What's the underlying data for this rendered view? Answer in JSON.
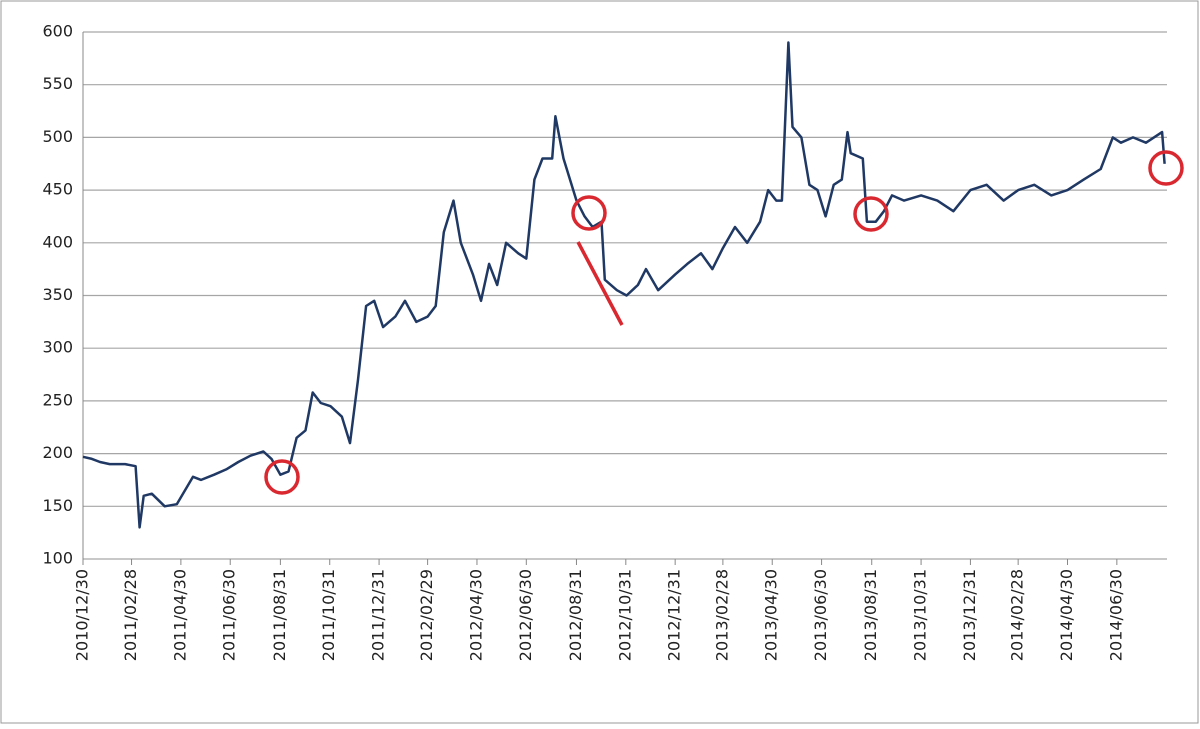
{
  "chart_data": {
    "type": "line",
    "x": [
      "2010/12/30",
      "2011/01/10",
      "2011/01/20",
      "2011/02/01",
      "2011/02/20",
      "2011/03/05",
      "2011/03/10",
      "2011/03/15",
      "2011/03/25",
      "2011/04/10",
      "2011/04/25",
      "2011/05/05",
      "2011/05/15",
      "2011/05/25",
      "2011/06/10",
      "2011/06/25",
      "2011/07/10",
      "2011/07/25",
      "2011/08/10",
      "2011/08/20",
      "2011/08/31",
      "2011/09/10",
      "2011/09/20",
      "2011/10/01",
      "2011/10/10",
      "2011/10/20",
      "2011/11/01",
      "2011/11/15",
      "2011/11/25",
      "2011/12/05",
      "2011/12/15",
      "2011/12/25",
      "2012/01/05",
      "2012/01/20",
      "2012/02/01",
      "2012/02/15",
      "2012/02/29",
      "2012/03/10",
      "2012/03/20",
      "2012/04/01",
      "2012/04/10",
      "2012/04/25",
      "2012/05/05",
      "2012/05/15",
      "2012/05/25",
      "2012/06/05",
      "2012/06/20",
      "2012/06/30",
      "2012/07/10",
      "2012/07/20",
      "2012/08/01",
      "2012/08/05",
      "2012/08/15",
      "2012/08/31",
      "2012/09/10",
      "2012/09/20",
      "2012/10/01",
      "2012/10/05",
      "2012/10/20",
      "2012/11/01",
      "2012/11/15",
      "2012/11/25",
      "2012/12/10",
      "2012/12/31",
      "2013/01/15",
      "2013/02/01",
      "2013/02/15",
      "2013/02/28",
      "2013/03/15",
      "2013/03/30",
      "2013/04/15",
      "2013/04/25",
      "2013/05/05",
      "2013/05/12",
      "2013/05/20",
      "2013/05/25",
      "2013/06/05",
      "2013/06/15",
      "2013/06/25",
      "2013/07/05",
      "2013/07/15",
      "2013/07/25",
      "2013/08/01",
      "2013/08/05",
      "2013/08/20",
      "2013/08/25",
      "2013/09/05",
      "2013/09/15",
      "2013/09/25",
      "2013/10/10",
      "2013/10/31",
      "2013/11/20",
      "2013/12/10",
      "2013/12/31",
      "2014/01/20",
      "2014/02/10",
      "2014/02/28",
      "2014/03/20",
      "2014/04/10",
      "2014/04/30",
      "2014/05/20",
      "2014/06/10",
      "2014/06/25",
      "2014/07/05",
      "2014/07/20",
      "2014/08/05",
      "2014/08/25",
      "2014/08/28"
    ],
    "values": [
      197,
      195,
      192,
      190,
      190,
      188,
      130,
      160,
      162,
      150,
      152,
      165,
      178,
      175,
      180,
      185,
      192,
      198,
      202,
      195,
      180,
      183,
      215,
      222,
      258,
      248,
      245,
      235,
      210,
      270,
      340,
      345,
      320,
      330,
      345,
      325,
      330,
      340,
      410,
      440,
      400,
      370,
      345,
      380,
      360,
      400,
      390,
      385,
      460,
      480,
      480,
      520,
      480,
      440,
      425,
      415,
      420,
      365,
      355,
      350,
      360,
      375,
      355,
      370,
      380,
      390,
      375,
      395,
      415,
      400,
      420,
      450,
      440,
      440,
      590,
      510,
      500,
      455,
      450,
      425,
      455,
      460,
      505,
      485,
      480,
      420,
      420,
      430,
      445,
      440,
      445,
      440,
      430,
      450,
      455,
      440,
      450,
      455,
      445,
      450,
      460,
      470,
      500,
      495,
      500,
      495,
      505,
      475
    ],
    "color": "#1f3864",
    "xlim": [
      "2010/12/30",
      "2014/08/31"
    ],
    "xticks": [
      "2010/12/30",
      "2011/02/28",
      "2011/04/30",
      "2011/06/30",
      "2011/08/31",
      "2011/10/31",
      "2011/12/31",
      "2012/02/29",
      "2012/04/30",
      "2012/06/30",
      "2012/08/31",
      "2012/10/31",
      "2012/12/31",
      "2013/02/28",
      "2013/04/30",
      "2013/06/30",
      "2013/08/31",
      "2013/10/31",
      "2013/12/31",
      "2014/02/28",
      "2014/04/30",
      "2014/06/30"
    ],
    "ylim": [
      100,
      600
    ],
    "yticks": [
      100,
      150,
      200,
      250,
      300,
      350,
      400,
      450,
      500,
      550,
      600
    ],
    "grid": true
  }
}
